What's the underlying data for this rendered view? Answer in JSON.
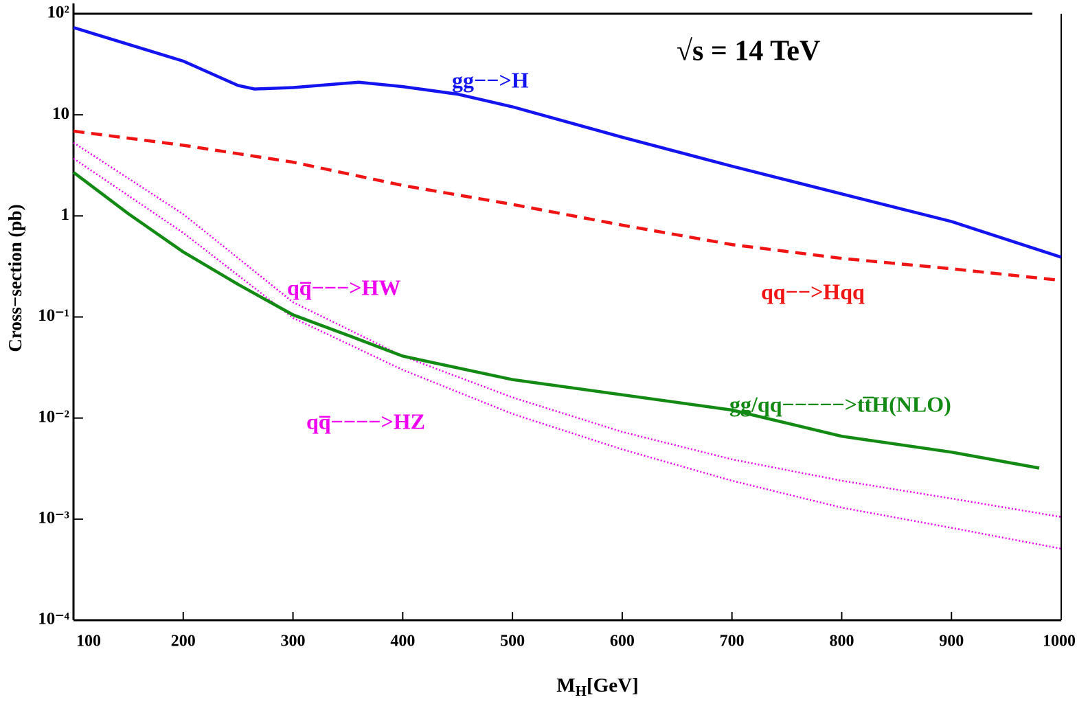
{
  "chart_data": {
    "type": "line",
    "annotation": "√s = 14 TeV",
    "y_label": "Cross−section (pb)",
    "x_label_parts": [
      "M",
      "H",
      "[GeV]"
    ],
    "xlim": [
      100,
      1000
    ],
    "xticks": [
      100,
      200,
      300,
      400,
      500,
      600,
      700,
      800,
      900,
      1000
    ],
    "ylim": [
      0.0001,
      100
    ],
    "yscale": "log",
    "yticks": [
      {
        "value": 0.0001,
        "label": "10⁻⁴"
      },
      {
        "value": 0.001,
        "label": "10⁻³"
      },
      {
        "value": 0.01,
        "label": "10⁻²"
      },
      {
        "value": 0.1,
        "label": "10⁻¹"
      },
      1,
      10,
      {
        "value": 100,
        "label": "10²"
      }
    ],
    "series": [
      {
        "name": "gg−−>H",
        "color": "#1414f0",
        "dash": "solid",
        "x": [
          100,
          200,
          250,
          265,
          300,
          360,
          400,
          450,
          500,
          600,
          700,
          800,
          900,
          1000
        ],
        "values": [
          73,
          34,
          19.5,
          18,
          18.6,
          21,
          19,
          16,
          12,
          6.0,
          3.1,
          1.65,
          0.88,
          0.39
        ]
      },
      {
        "name": "qq−−>Hqq",
        "color": "#f01414",
        "dash": "dashed",
        "x": [
          100,
          200,
          300,
          400,
          500,
          600,
          700,
          800,
          900,
          1000
        ],
        "values": [
          6.9,
          5.0,
          3.4,
          2.0,
          1.3,
          0.81,
          0.52,
          0.38,
          0.3,
          0.23
        ]
      },
      {
        "name": "qq̅−−−>HW",
        "color": "#f000f0",
        "dash": "dotted",
        "x": [
          100,
          200,
          300,
          400,
          500,
          600,
          700,
          800,
          900,
          1000
        ],
        "values": [
          5.3,
          1.04,
          0.14,
          0.041,
          0.016,
          0.0073,
          0.0039,
          0.0024,
          0.0016,
          0.00105
        ]
      },
      {
        "name": "qq̅−−−−>HZ",
        "color": "#f000f0",
        "dash": "dotted",
        "x": [
          100,
          200,
          300,
          400,
          500,
          600,
          700,
          800,
          900,
          1000
        ],
        "values": [
          3.7,
          0.68,
          0.098,
          0.03,
          0.011,
          0.0049,
          0.0024,
          0.0013,
          0.00082,
          0.00051
        ]
      },
      {
        "name": "gg/qq−−−−−>tt̅H(NLO)",
        "color": "#138a13",
        "dash": "solid",
        "x": [
          100,
          150,
          200,
          250,
          300,
          350,
          400,
          500,
          600,
          700,
          800,
          900,
          980
        ],
        "values": [
          2.7,
          1.05,
          0.44,
          0.21,
          0.105,
          0.066,
          0.041,
          0.024,
          0.017,
          0.012,
          0.0066,
          0.0046,
          0.0032
        ]
      }
    ]
  }
}
